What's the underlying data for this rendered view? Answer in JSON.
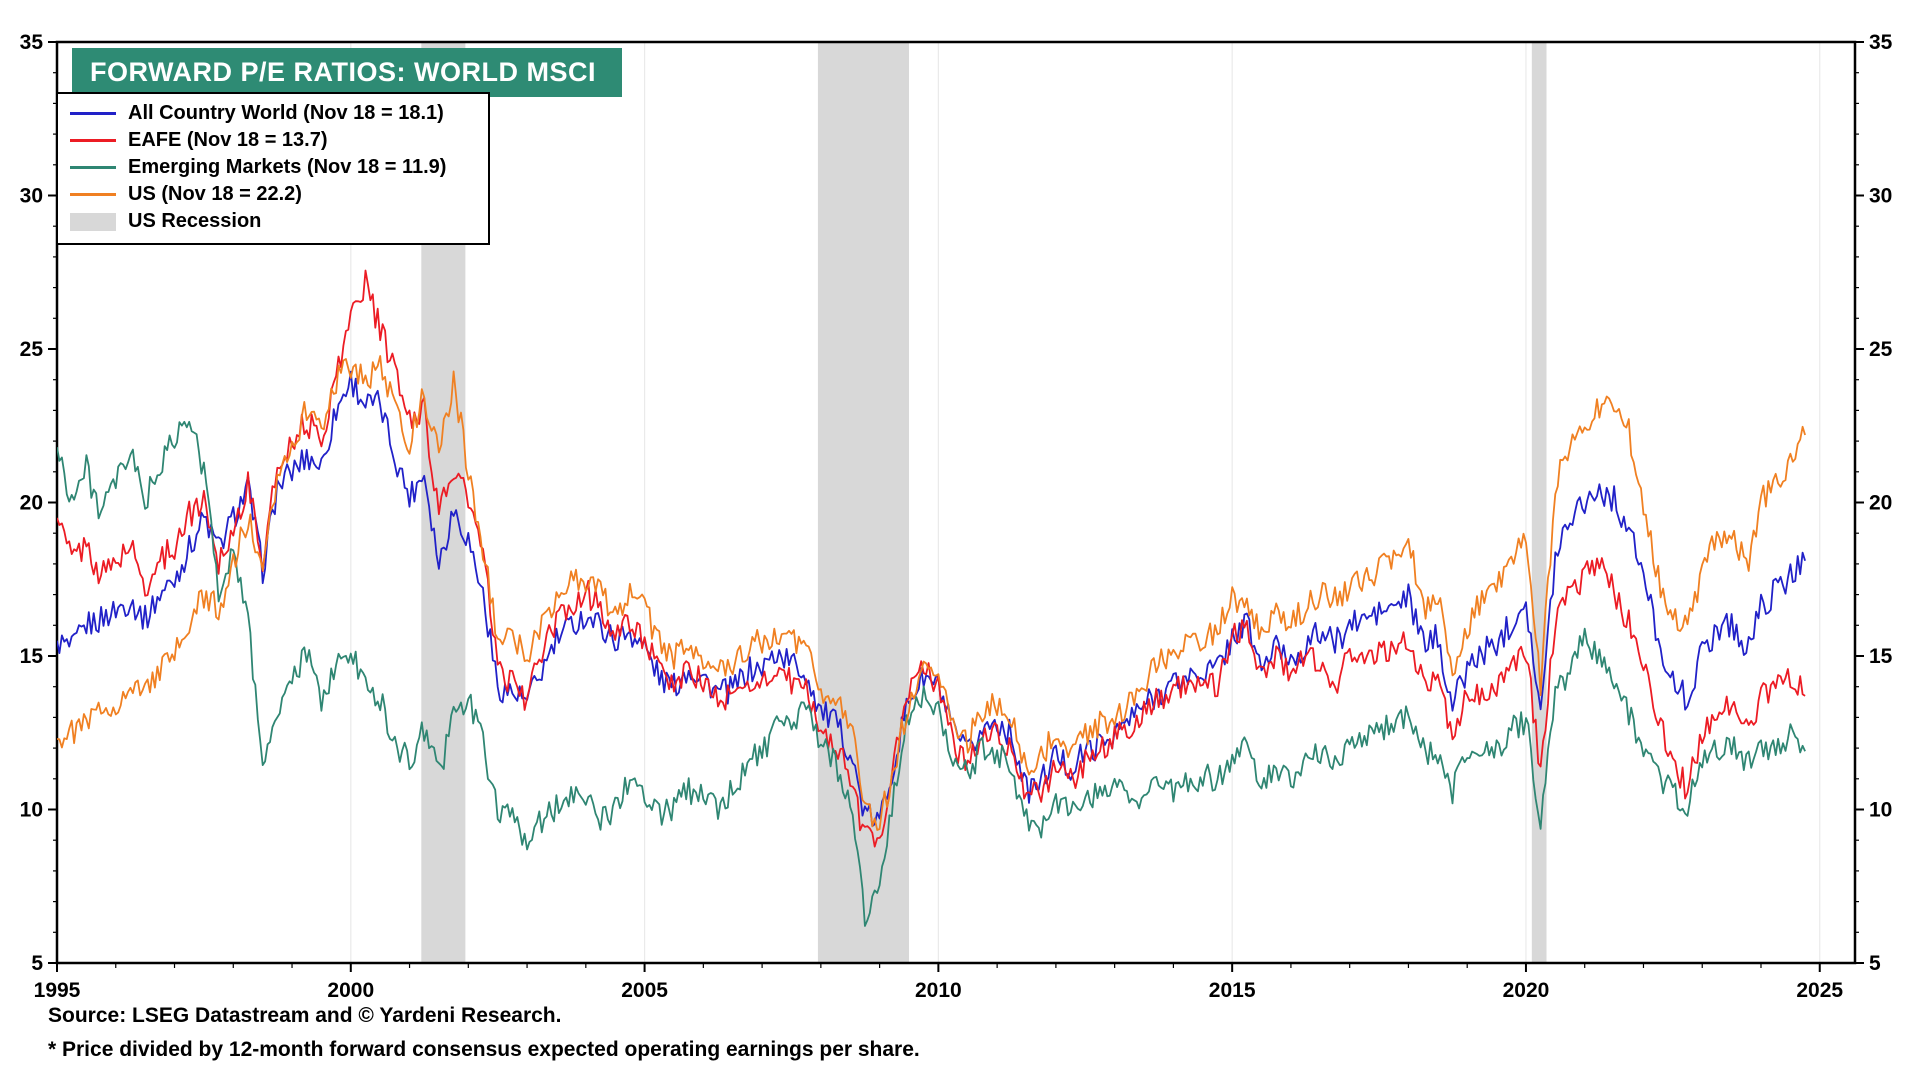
{
  "title": "FORWARD P/E RATIOS: WORLD MSCI",
  "footer": {
    "source": "Source: LSEG Datastream and © Yardeni Research.",
    "footnote": "* Price divided by 12-month forward consensus expected operating earnings per share."
  },
  "colors": {
    "title_bg": "#2e8b74",
    "recession": "#d8d8d8",
    "gridline": "#eaeaea",
    "frame": "#000000"
  },
  "chart_data": {
    "type": "line",
    "title": "FORWARD P/E RATIOS: WORLD MSCI",
    "xlabel": "",
    "ylabel": "",
    "x_start": 1995,
    "x_step": 0.25,
    "x_range": [
      1995,
      2025.6
    ],
    "y_range": [
      5,
      35
    ],
    "y_ticks": [
      5,
      10,
      15,
      20,
      25,
      30,
      35
    ],
    "x_ticks": [
      1995,
      2000,
      2005,
      2010,
      2015,
      2020,
      2025
    ],
    "grid": "vertical-5yr",
    "legend_position": "top-left",
    "legend_recession_label": "US Recession",
    "recessions": [
      [
        2001.2,
        2001.95
      ],
      [
        2007.95,
        2009.5
      ],
      [
        2020.1,
        2020.35
      ]
    ],
    "series": [
      {
        "name": "All Country World (Nov 18 = 18.1)",
        "color": "#2121c8",
        "values": [
          15.5,
          15.2,
          16.0,
          16.2,
          16.5,
          16.8,
          16.2,
          17.0,
          17.5,
          18.5,
          19.5,
          18.5,
          19.5,
          20.5,
          17.8,
          20.5,
          21.0,
          21.5,
          21.2,
          23.0,
          24.0,
          23.2,
          23.2,
          21.5,
          20.2,
          21.0,
          18.0,
          19.8,
          18.8,
          17.0,
          14.0,
          13.8,
          13.5,
          14.5,
          15.5,
          16.0,
          16.3,
          16.0,
          15.5,
          15.8,
          15.3,
          14.3,
          14.0,
          14.6,
          14.3,
          13.8,
          13.9,
          14.5,
          14.6,
          15.1,
          14.8,
          14.4,
          13.2,
          12.8,
          11.9,
          9.8,
          9.6,
          11.6,
          13.6,
          14.3,
          14.0,
          12.5,
          11.8,
          12.6,
          12.9,
          12.4,
          10.6,
          10.9,
          11.8,
          11.3,
          11.9,
          12.1,
          12.5,
          12.9,
          13.4,
          13.8,
          14.1,
          14.3,
          14.5,
          14.6,
          15.6,
          16.1,
          14.6,
          15.3,
          14.9,
          15.3,
          15.8,
          15.4,
          16.0,
          16.2,
          16.4,
          16.6,
          16.9,
          15.4,
          15.6,
          13.4,
          14.6,
          15.1,
          15.4,
          16.1,
          16.9,
          13.0,
          18.3,
          19.6,
          20.1,
          20.4,
          20.1,
          19.1,
          17.6,
          15.6,
          14.1,
          13.6,
          15.1,
          15.9,
          16.1,
          15.1,
          16.6,
          17.1,
          17.6,
          18.1
        ]
      },
      {
        "name": "EAFE (Nov 18 = 13.7)",
        "color": "#ec1c24",
        "values": [
          19.5,
          18.2,
          18.6,
          17.6,
          18.1,
          18.6,
          17.2,
          18.1,
          18.6,
          19.6,
          20.1,
          18.1,
          19.1,
          20.6,
          18.1,
          21.1,
          22.1,
          22.6,
          22.1,
          24.1,
          26.1,
          27.2,
          25.6,
          24.3,
          22.6,
          23.1,
          19.6,
          21.1,
          20.1,
          18.3,
          14.6,
          14.1,
          13.6,
          15.1,
          16.1,
          16.6,
          17.1,
          16.6,
          15.6,
          16.1,
          15.6,
          14.4,
          14.1,
          14.6,
          14.1,
          13.6,
          13.6,
          14.1,
          14.1,
          14.6,
          14.1,
          13.9,
          12.6,
          12.1,
          11.1,
          9.1,
          9.1,
          11.6,
          13.9,
          14.6,
          14.1,
          12.1,
          11.6,
          12.4,
          12.4,
          12.1,
          10.4,
          10.6,
          11.4,
          10.9,
          11.6,
          11.9,
          12.4,
          12.6,
          13.1,
          13.6,
          13.9,
          14.1,
          14.3,
          14.1,
          15.6,
          16.1,
          14.4,
          15.1,
          14.4,
          14.9,
          14.9,
          14.1,
          14.9,
          15.1,
          15.1,
          15.3,
          15.4,
          14.1,
          14.1,
          12.6,
          13.6,
          13.9,
          13.9,
          14.6,
          15.1,
          11.3,
          16.1,
          17.1,
          17.6,
          17.9,
          17.1,
          16.1,
          14.6,
          13.1,
          11.6,
          10.6,
          12.6,
          13.1,
          13.4,
          12.6,
          13.6,
          14.1,
          14.3,
          13.7
        ]
      },
      {
        "name": "Emerging Markets (Nov 18 = 11.9)",
        "color": "#2f8673",
        "values": [
          21.8,
          20.1,
          21.1,
          19.6,
          20.6,
          21.6,
          20.1,
          21.1,
          22.1,
          22.6,
          21.1,
          17.1,
          18.6,
          16.1,
          11.6,
          13.1,
          14.1,
          15.1,
          13.6,
          14.6,
          15.1,
          14.1,
          13.6,
          12.1,
          11.6,
          12.6,
          11.1,
          13.1,
          13.6,
          12.1,
          10.1,
          9.6,
          9.1,
          9.6,
          10.1,
          10.6,
          10.6,
          9.6,
          10.1,
          10.9,
          10.6,
          9.9,
          10.1,
          10.6,
          10.6,
          10.1,
          10.6,
          11.6,
          11.9,
          12.6,
          12.6,
          13.4,
          12.1,
          11.6,
          10.1,
          6.6,
          7.6,
          10.6,
          13.1,
          13.9,
          13.1,
          11.6,
          11.1,
          12.1,
          11.9,
          11.4,
          9.6,
          9.4,
          10.4,
          9.9,
          10.4,
          10.6,
          10.9,
          10.4,
          10.4,
          10.9,
          10.6,
          10.9,
          11.1,
          10.9,
          11.6,
          12.1,
          10.9,
          11.4,
          10.9,
          11.4,
          11.9,
          11.4,
          12.1,
          12.4,
          12.6,
          12.9,
          13.1,
          11.9,
          11.6,
          10.6,
          11.6,
          12.1,
          11.9,
          12.6,
          12.9,
          9.5,
          13.6,
          14.6,
          15.6,
          15.1,
          14.1,
          13.1,
          12.1,
          11.1,
          10.6,
          10.1,
          11.6,
          11.9,
          12.1,
          11.6,
          11.9,
          12.1,
          12.4,
          11.9
        ]
      },
      {
        "name": "US (Nov 18 = 22.2)",
        "color": "#f08022",
        "values": [
          12.3,
          12.5,
          12.8,
          13.2,
          13.5,
          13.8,
          14.0,
          14.5,
          15.0,
          16.0,
          17.0,
          16.5,
          18.0,
          19.5,
          17.5,
          21.0,
          22.0,
          23.0,
          22.5,
          24.0,
          24.5,
          24.0,
          24.5,
          23.0,
          22.0,
          23.5,
          21.5,
          24.0,
          21.0,
          18.5,
          15.5,
          15.5,
          15.0,
          16.0,
          17.0,
          17.5,
          17.5,
          17.0,
          16.5,
          17.0,
          16.5,
          15.5,
          15.0,
          15.3,
          15.0,
          14.5,
          14.5,
          15.3,
          15.5,
          15.8,
          15.5,
          15.3,
          14.0,
          13.5,
          12.8,
          10.0,
          9.5,
          11.5,
          13.5,
          14.5,
          14.5,
          13.0,
          12.2,
          13.2,
          13.5,
          13.0,
          11.2,
          11.8,
          12.5,
          12.0,
          12.5,
          12.8,
          13.0,
          13.5,
          14.2,
          14.8,
          15.0,
          15.3,
          15.5,
          15.8,
          16.8,
          16.8,
          15.5,
          16.3,
          16.0,
          16.6,
          17.0,
          16.8,
          17.3,
          17.5,
          17.8,
          18.2,
          18.8,
          16.5,
          17.0,
          14.5,
          16.0,
          16.8,
          17.2,
          18.2,
          18.8,
          14.0,
          20.5,
          22.0,
          22.5,
          23.0,
          23.3,
          22.3,
          20.0,
          17.5,
          16.3,
          15.8,
          17.8,
          18.8,
          19.2,
          17.8,
          20.0,
          20.6,
          21.2,
          22.2
        ]
      }
    ]
  }
}
